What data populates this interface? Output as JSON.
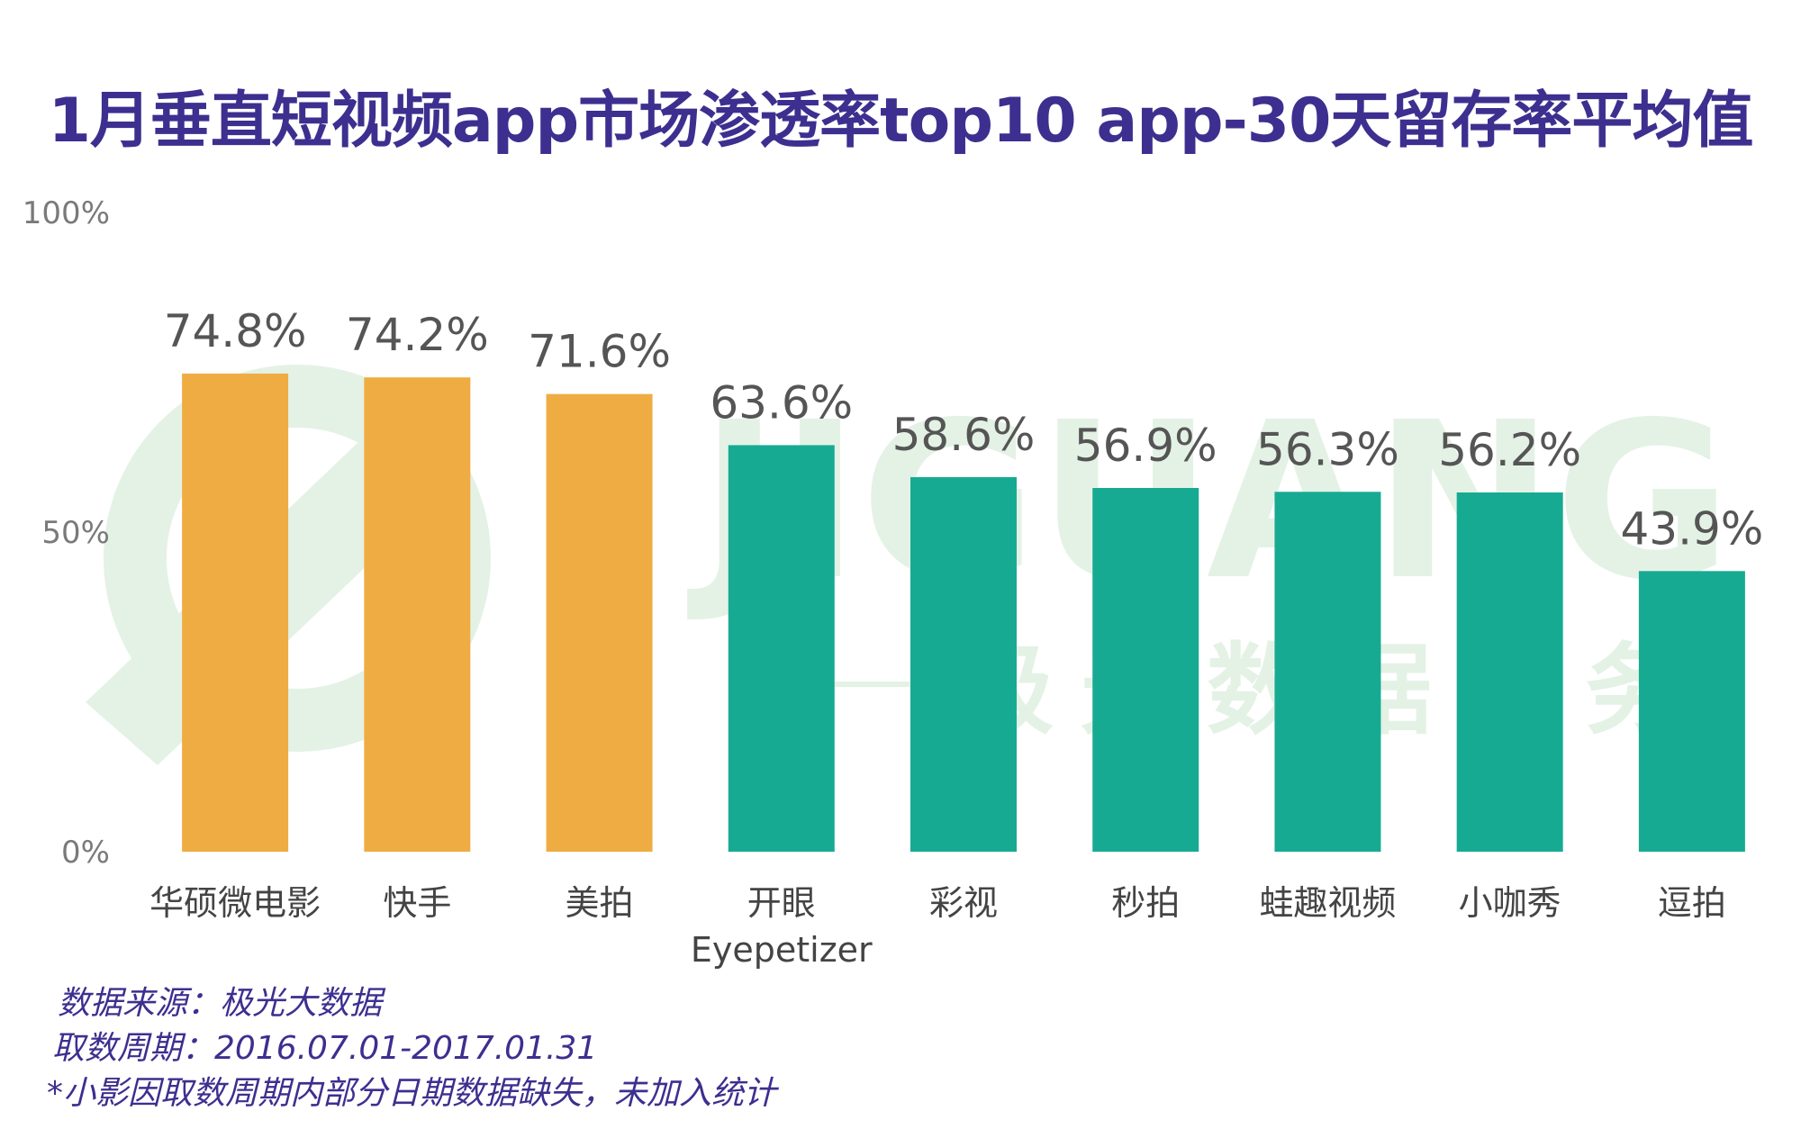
{
  "chart_data": {
    "type": "bar",
    "title": "1月垂直短视频app市场渗透率top10 app-30天留存率平均值",
    "categories": [
      "华硕微电影",
      "快手",
      "美拍",
      "开眼",
      "彩视",
      "秒拍",
      "蛙趣视频",
      "小咖秀",
      "逗拍"
    ],
    "category_sublabels": [
      "",
      "",
      "",
      "Eyepetizer",
      "",
      "",
      "",
      "",
      ""
    ],
    "values": [
      74.8,
      74.2,
      71.6,
      63.6,
      58.6,
      56.9,
      56.3,
      56.2,
      43.9
    ],
    "value_labels": [
      "74.8%",
      "74.2%",
      "71.6%",
      "63.6%",
      "58.6%",
      "56.9%",
      "56.3%",
      "56.2%",
      "43.9%"
    ],
    "bar_colors": [
      "#efac43",
      "#efac43",
      "#efac43",
      "#17aa92",
      "#17aa92",
      "#17aa92",
      "#17aa92",
      "#17aa92",
      "#17aa92"
    ],
    "yticks": [
      {
        "value": 0,
        "label": "0%"
      },
      {
        "value": 50,
        "label": "50%"
      },
      {
        "value": 100,
        "label": "100%"
      }
    ],
    "ylim": [
      0,
      100
    ],
    "xlabel": "",
    "ylabel": "",
    "grid": false
  },
  "watermark": {
    "text": "JIGUANG",
    "subtext": "极光数据服务",
    "color": "#e4f2e6"
  },
  "notes": {
    "source": "数据来源：极光大数据",
    "period": "取数周期：2016.07.01-2017.01.31",
    "footnote": "*小影因取数周期内部分日期数据缺失，未加入统计"
  },
  "colors": {
    "title": "#3d2f8f",
    "highlight_bar": "#efac43",
    "default_bar": "#17aa92"
  }
}
